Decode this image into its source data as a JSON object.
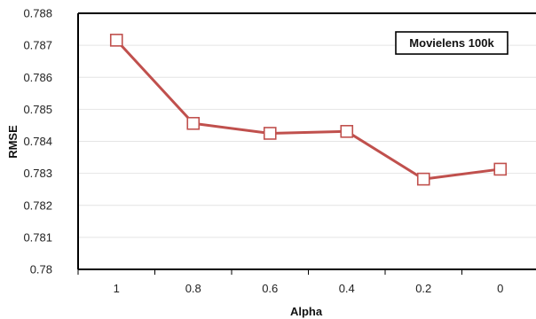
{
  "chart_data": {
    "type": "line",
    "title": "",
    "xlabel": "Alpha",
    "ylabel": "RMSE",
    "categories": [
      "1",
      "0.8",
      "0.6",
      "0.4",
      "0.2",
      "0"
    ],
    "series": [
      {
        "name": "Movielens 100k",
        "values": [
          0.78716,
          0.78456,
          0.78425,
          0.78431,
          0.78282,
          0.78313
        ]
      }
    ],
    "ylim": [
      0.78,
      0.788
    ],
    "yticks": [
      "0.788",
      "0.787",
      "0.786",
      "0.785",
      "0.784",
      "0.783",
      "0.782",
      "0.781",
      "0.78"
    ],
    "yticks_values": [
      0.788,
      0.787,
      0.786,
      0.785,
      0.784,
      0.783,
      0.782,
      0.781,
      0.78
    ],
    "grid": true,
    "legend_position": "top-right",
    "marker": "hollow-square",
    "colors": {
      "series": "#C0504D",
      "marker_fill": "#ffffff",
      "grid": "#e4e4e4",
      "axis": "#000000"
    }
  }
}
